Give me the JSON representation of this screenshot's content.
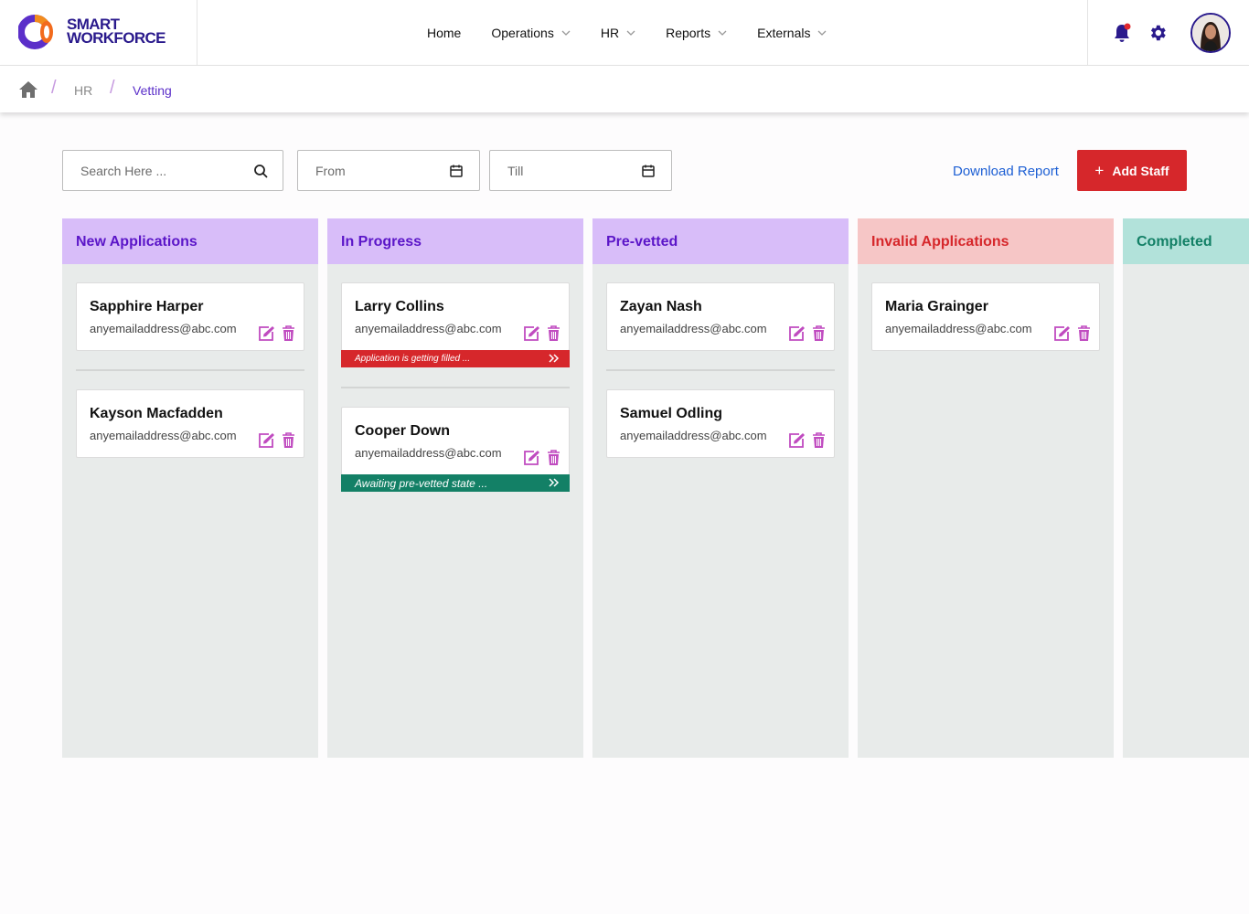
{
  "brand": {
    "line1": "SMART",
    "line2": "WORKFORCE"
  },
  "nav": [
    {
      "label": "Home",
      "dropdown": false
    },
    {
      "label": "Operations",
      "dropdown": true
    },
    {
      "label": "HR",
      "dropdown": true
    },
    {
      "label": "Reports",
      "dropdown": true
    },
    {
      "label": "Externals",
      "dropdown": true
    }
  ],
  "breadcrumb": {
    "level1": "HR",
    "current": "Vetting",
    "separator": "/"
  },
  "toolbar": {
    "search_placeholder": "Search Here ...",
    "from_placeholder": "From",
    "till_placeholder": "Till",
    "download_label": "Download Report",
    "add_label": "Add Staff",
    "add_icon": "+"
  },
  "colors": {
    "brand": "#2a1a8c",
    "accent_purple": "#5b2fc9",
    "action_pink": "#c04bc0",
    "danger": "#d6272b",
    "success": "#138066",
    "link": "#1d5fd4"
  },
  "columns": [
    {
      "title": "New Applications",
      "cards": [
        {
          "name": "Sapphire Harper",
          "email": "anyemailaddress@abc.com",
          "status": null
        },
        {
          "name": "Kayson Macfadden",
          "email": "anyemailaddress@abc.com",
          "status": null
        }
      ]
    },
    {
      "title": "In Progress",
      "cards": [
        {
          "name": "Larry Collins",
          "email": "anyemailaddress@abc.com",
          "status": {
            "text": "Application is getting filled ...",
            "kind": "danger"
          }
        },
        {
          "name": "Cooper Down",
          "email": "anyemailaddress@abc.com",
          "status": {
            "text": "Awaiting pre-vetted state ...",
            "kind": "success"
          }
        }
      ]
    },
    {
      "title": "Pre-vetted",
      "cards": [
        {
          "name": "Zayan Nash",
          "email": "anyemailaddress@abc.com",
          "status": null
        },
        {
          "name": "Samuel Odling",
          "email": "anyemailaddress@abc.com",
          "status": null
        }
      ]
    },
    {
      "title": "Invalid Applications",
      "cards": [
        {
          "name": "Maria Grainger",
          "email": "anyemailaddress@abc.com",
          "status": null
        }
      ]
    },
    {
      "title": "Completed",
      "cards": []
    }
  ]
}
